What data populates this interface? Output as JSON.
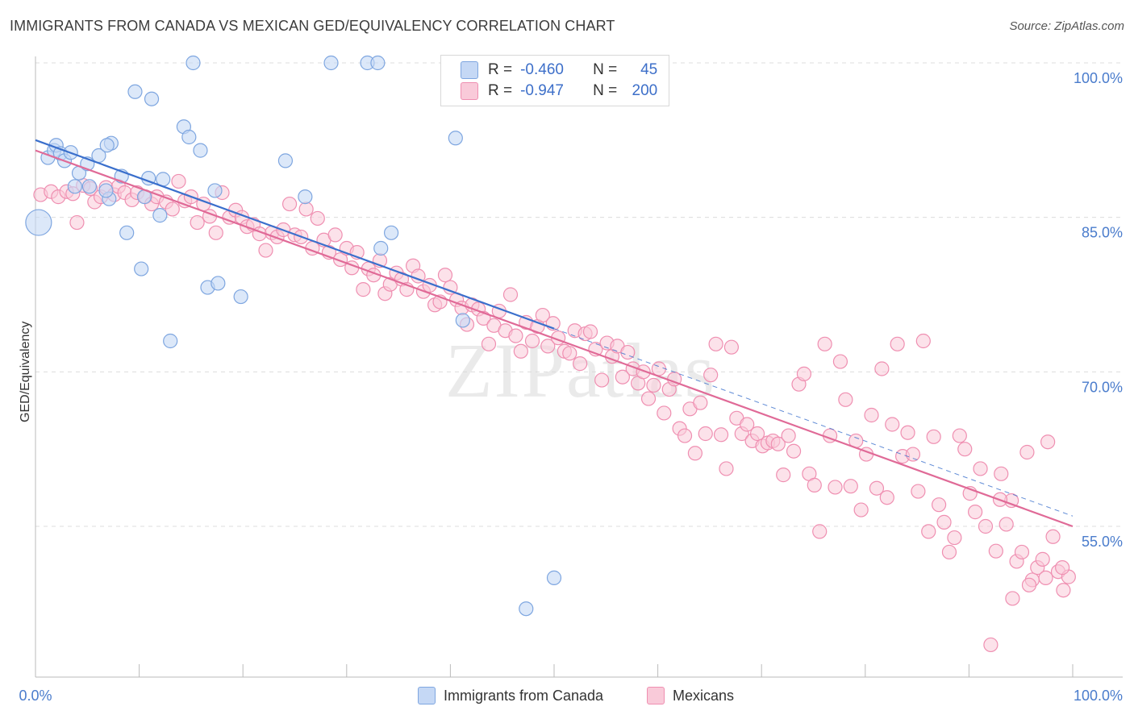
{
  "header": {
    "title": "IMMIGRANTS FROM CANADA VS MEXICAN GED/EQUIVALENCY CORRELATION CHART",
    "source": "Source: ZipAtlas.com"
  },
  "colors": {
    "canada": "#7ea6e0",
    "canada_fill": "#c5d8f5",
    "canada_line": "#3a6fcc",
    "mexicans": "#ef8fb1",
    "mexicans_fill": "#f9cad9",
    "mexicans_line": "#e06a97",
    "tick_label": "#4a7ccc"
  },
  "stats": {
    "canada": {
      "r_label": "R =",
      "r_value": "-0.460",
      "n_label": "N =",
      "n_value": "45"
    },
    "mexicans": {
      "r_label": "R =",
      "r_value": "-0.947",
      "n_label": "N =",
      "n_value": "200"
    }
  },
  "chart_data": {
    "type": "scatter",
    "xlabel": "",
    "ylabel": "GED/Equivalency",
    "xlim": [
      0,
      100
    ],
    "ylim": [
      42,
      103
    ],
    "x_tick_labels": [
      "0.0%",
      "100.0%"
    ],
    "y_ticks": [
      55,
      70,
      85,
      100
    ],
    "y_tick_labels": [
      "55.0%",
      "70.0%",
      "85.0%",
      "100.0%"
    ],
    "grid": "horizontal dashed",
    "legend": "bottom",
    "watermark": "ZIPatlas",
    "series": [
      {
        "name": "Immigrants from Canada",
        "key": "canada",
        "trend": {
          "x0": 0,
          "y0": 92.5,
          "x1": 50,
          "y1": 74.2,
          "extend_to": 100,
          "extend_y": 56.0
        },
        "points": [
          [
            0.3,
            84.5
          ],
          [
            1.2,
            90.8
          ],
          [
            1.8,
            91.5
          ],
          [
            2.0,
            92.0
          ],
          [
            2.4,
            91.2
          ],
          [
            2.8,
            90.5
          ],
          [
            3.4,
            91.3
          ],
          [
            3.8,
            88.0
          ],
          [
            4.2,
            89.3
          ],
          [
            5.0,
            90.2
          ],
          [
            5.2,
            88.0
          ],
          [
            6.1,
            91.0
          ],
          [
            7.1,
            86.8
          ],
          [
            6.8,
            87.6
          ],
          [
            7.3,
            92.2
          ],
          [
            6.9,
            92.0
          ],
          [
            8.3,
            89.0
          ],
          [
            8.8,
            83.5
          ],
          [
            9.6,
            97.2
          ],
          [
            10.5,
            87.0
          ],
          [
            10.2,
            80.0
          ],
          [
            10.9,
            88.8
          ],
          [
            11.2,
            96.5
          ],
          [
            12.0,
            85.2
          ],
          [
            12.3,
            88.7
          ],
          [
            13.0,
            73.0
          ],
          [
            14.3,
            93.8
          ],
          [
            14.8,
            92.8
          ],
          [
            15.2,
            100.0
          ],
          [
            15.9,
            91.5
          ],
          [
            16.6,
            78.2
          ],
          [
            17.3,
            87.6
          ],
          [
            17.6,
            78.6
          ],
          [
            19.8,
            77.3
          ],
          [
            24.1,
            90.5
          ],
          [
            26.0,
            87.0
          ],
          [
            28.5,
            100.0
          ],
          [
            32.0,
            100.0
          ],
          [
            33.0,
            100.0
          ],
          [
            33.3,
            82.0
          ],
          [
            34.3,
            83.5
          ],
          [
            40.5,
            92.7
          ],
          [
            41.2,
            75.0
          ],
          [
            47.3,
            47.0
          ],
          [
            50.0,
            50.0
          ]
        ]
      },
      {
        "name": "Mexicans",
        "key": "mexicans",
        "trend": {
          "x0": 0,
          "y0": 91.5,
          "x1": 100,
          "y1": 55.0
        },
        "points": [
          [
            0.5,
            87.2
          ],
          [
            1.5,
            87.5
          ],
          [
            2.2,
            87.0
          ],
          [
            3.0,
            87.5
          ],
          [
            3.6,
            87.3
          ],
          [
            4.0,
            84.5
          ],
          [
            4.6,
            88.1
          ],
          [
            5.3,
            87.8
          ],
          [
            5.7,
            86.5
          ],
          [
            6.3,
            87.0
          ],
          [
            6.8,
            87.9
          ],
          [
            7.6,
            87.2
          ],
          [
            8.0,
            88.0
          ],
          [
            8.6,
            87.4
          ],
          [
            9.3,
            86.7
          ],
          [
            9.8,
            87.4
          ],
          [
            10.6,
            87.0
          ],
          [
            11.2,
            86.3
          ],
          [
            11.7,
            87.0
          ],
          [
            12.6,
            86.5
          ],
          [
            13.2,
            85.8
          ],
          [
            13.8,
            88.5
          ],
          [
            14.4,
            86.6
          ],
          [
            15.0,
            87.0
          ],
          [
            15.6,
            84.5
          ],
          [
            16.2,
            86.3
          ],
          [
            16.8,
            85.1
          ],
          [
            17.4,
            83.5
          ],
          [
            18.0,
            87.4
          ],
          [
            18.7,
            85.0
          ],
          [
            19.3,
            85.7
          ],
          [
            19.9,
            85.0
          ],
          [
            20.4,
            84.1
          ],
          [
            21.0,
            84.3
          ],
          [
            21.6,
            83.4
          ],
          [
            22.2,
            81.8
          ],
          [
            22.8,
            83.5
          ],
          [
            23.3,
            83.1
          ],
          [
            23.9,
            83.8
          ],
          [
            24.5,
            86.3
          ],
          [
            25.0,
            83.3
          ],
          [
            25.6,
            83.1
          ],
          [
            26.1,
            85.8
          ],
          [
            26.7,
            82.0
          ],
          [
            27.2,
            84.9
          ],
          [
            27.8,
            82.8
          ],
          [
            28.3,
            81.6
          ],
          [
            28.9,
            83.3
          ],
          [
            29.4,
            80.9
          ],
          [
            30.0,
            82.0
          ],
          [
            30.5,
            80.1
          ],
          [
            31.0,
            81.6
          ],
          [
            31.6,
            78.0
          ],
          [
            32.1,
            80.0
          ],
          [
            32.6,
            79.4
          ],
          [
            33.2,
            80.8
          ],
          [
            33.7,
            77.6
          ],
          [
            34.2,
            78.5
          ],
          [
            34.8,
            79.6
          ],
          [
            35.3,
            79.0
          ],
          [
            35.8,
            78.0
          ],
          [
            36.4,
            80.3
          ],
          [
            36.9,
            79.3
          ],
          [
            37.4,
            77.8
          ],
          [
            38.0,
            78.4
          ],
          [
            38.5,
            76.5
          ],
          [
            39.0,
            76.8
          ],
          [
            39.5,
            79.4
          ],
          [
            40.0,
            78.2
          ],
          [
            40.6,
            77.0
          ],
          [
            41.1,
            76.2
          ],
          [
            41.6,
            74.6
          ],
          [
            42.1,
            76.5
          ],
          [
            42.7,
            76.1
          ],
          [
            43.2,
            75.2
          ],
          [
            43.7,
            72.7
          ],
          [
            44.2,
            74.5
          ],
          [
            44.7,
            75.9
          ],
          [
            45.3,
            74.0
          ],
          [
            45.8,
            77.5
          ],
          [
            46.3,
            73.5
          ],
          [
            46.8,
            72.0
          ],
          [
            47.3,
            74.8
          ],
          [
            47.9,
            73.0
          ],
          [
            48.4,
            74.4
          ],
          [
            48.9,
            75.5
          ],
          [
            49.4,
            72.5
          ],
          [
            49.9,
            74.7
          ],
          [
            50.4,
            73.3
          ],
          [
            51.0,
            72.0
          ],
          [
            51.5,
            71.8
          ],
          [
            52.0,
            74.0
          ],
          [
            52.5,
            70.8
          ],
          [
            53.0,
            73.7
          ],
          [
            53.5,
            73.9
          ],
          [
            54.0,
            72.2
          ],
          [
            54.6,
            69.2
          ],
          [
            55.1,
            72.8
          ],
          [
            55.6,
            71.5
          ],
          [
            56.1,
            72.5
          ],
          [
            56.6,
            69.5
          ],
          [
            57.1,
            71.9
          ],
          [
            57.6,
            70.3
          ],
          [
            58.1,
            68.9
          ],
          [
            58.6,
            70.0
          ],
          [
            59.1,
            67.4
          ],
          [
            59.6,
            68.7
          ],
          [
            60.1,
            70.3
          ],
          [
            60.6,
            66.0
          ],
          [
            61.1,
            68.3
          ],
          [
            61.6,
            69.3
          ],
          [
            62.1,
            64.5
          ],
          [
            62.6,
            63.8
          ],
          [
            63.1,
            66.4
          ],
          [
            63.6,
            62.1
          ],
          [
            64.1,
            67.0
          ],
          [
            64.6,
            64.0
          ],
          [
            65.1,
            69.7
          ],
          [
            65.6,
            72.7
          ],
          [
            66.1,
            63.9
          ],
          [
            66.6,
            60.6
          ],
          [
            67.1,
            72.4
          ],
          [
            67.6,
            65.5
          ],
          [
            68.1,
            64.0
          ],
          [
            68.6,
            64.9
          ],
          [
            69.1,
            63.3
          ],
          [
            69.6,
            64.0
          ],
          [
            70.1,
            62.8
          ],
          [
            70.6,
            63.1
          ],
          [
            71.1,
            63.3
          ],
          [
            71.6,
            63.0
          ],
          [
            72.1,
            60.0
          ],
          [
            72.6,
            63.8
          ],
          [
            73.1,
            62.3
          ],
          [
            73.6,
            68.8
          ],
          [
            74.1,
            69.8
          ],
          [
            74.6,
            60.1
          ],
          [
            75.1,
            59.0
          ],
          [
            75.6,
            54.5
          ],
          [
            76.1,
            72.7
          ],
          [
            76.6,
            63.8
          ],
          [
            77.1,
            58.8
          ],
          [
            77.6,
            71.0
          ],
          [
            78.1,
            67.3
          ],
          [
            78.6,
            58.9
          ],
          [
            79.1,
            63.3
          ],
          [
            79.6,
            56.6
          ],
          [
            80.1,
            62.0
          ],
          [
            80.6,
            65.8
          ],
          [
            81.1,
            58.7
          ],
          [
            81.6,
            70.3
          ],
          [
            82.1,
            57.8
          ],
          [
            82.6,
            64.9
          ],
          [
            83.1,
            72.7
          ],
          [
            83.6,
            61.8
          ],
          [
            84.1,
            64.1
          ],
          [
            84.6,
            62.0
          ],
          [
            85.1,
            58.4
          ],
          [
            85.6,
            73.0
          ],
          [
            86.1,
            54.5
          ],
          [
            86.6,
            63.7
          ],
          [
            87.1,
            57.1
          ],
          [
            87.6,
            55.4
          ],
          [
            88.1,
            52.5
          ],
          [
            88.6,
            53.9
          ],
          [
            89.1,
            63.8
          ],
          [
            89.6,
            62.5
          ],
          [
            90.1,
            58.2
          ],
          [
            90.6,
            56.4
          ],
          [
            91.1,
            60.6
          ],
          [
            91.6,
            55.0
          ],
          [
            92.1,
            43.5
          ],
          [
            92.6,
            52.6
          ],
          [
            93.1,
            60.1
          ],
          [
            93.6,
            55.2
          ],
          [
            94.1,
            57.5
          ],
          [
            94.6,
            51.6
          ],
          [
            95.1,
            52.5
          ],
          [
            95.6,
            62.2
          ],
          [
            96.1,
            49.8
          ],
          [
            96.6,
            51.0
          ],
          [
            97.1,
            51.8
          ],
          [
            97.6,
            63.2
          ],
          [
            98.1,
            54.0
          ],
          [
            98.6,
            50.6
          ],
          [
            99.1,
            48.8
          ],
          [
            99.6,
            50.1
          ],
          [
            95.8,
            49.3
          ],
          [
            97.4,
            50.0
          ],
          [
            99.0,
            51.0
          ],
          [
            94.2,
            48.0
          ],
          [
            93.0,
            57.6
          ]
        ]
      }
    ]
  }
}
